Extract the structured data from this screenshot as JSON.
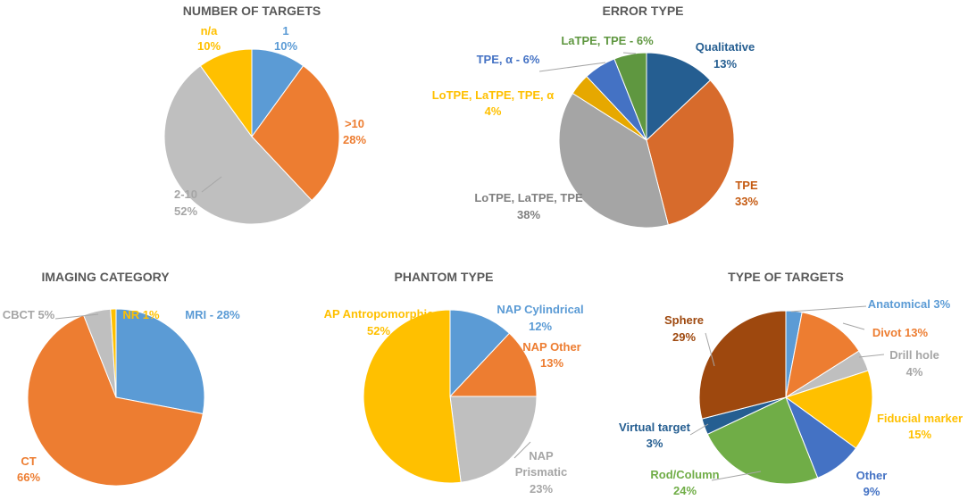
{
  "chart_data": [
    {
      "type": "pie",
      "title": "NUMBER OF TARGETS",
      "slices": [
        {
          "label": "1",
          "value": 10,
          "pct": "10%",
          "color": "#5b9bd5"
        },
        {
          "label": ">10",
          "value": 28,
          "pct": "28%",
          "color": "#ed7d31"
        },
        {
          "label": "2-10",
          "value": 52,
          "pct": "52%",
          "color": "#bfbfbf"
        },
        {
          "label": "n/a",
          "value": 10,
          "pct": "10%",
          "color": "#ffc000"
        }
      ]
    },
    {
      "type": "pie",
      "title": "ERROR TYPE",
      "slices": [
        {
          "label": "Qualitative",
          "value": 13,
          "pct": "13%",
          "color": "#255e91"
        },
        {
          "label": "TPE",
          "value": 33,
          "pct": "33%",
          "color": "#d76b2c"
        },
        {
          "label": "LoTPE, LaTPE, TPE",
          "value": 38,
          "pct": "38%",
          "color": "#a5a5a5"
        },
        {
          "label": "LoTPE, LaTPE, TPE, α",
          "value": 4,
          "pct": "4%",
          "color": "#e6a800"
        },
        {
          "label": "TPE, α - 6%",
          "value": 6,
          "pct": "",
          "color": "#4472c4"
        },
        {
          "label": "LaTPE, TPE - 6%",
          "value": 6,
          "pct": "",
          "color": "#5f9740"
        }
      ]
    },
    {
      "type": "pie",
      "title": "IMAGING CATEGORY",
      "slices": [
        {
          "label": "MRI - 28%",
          "value": 28,
          "pct": "",
          "color": "#5b9bd5"
        },
        {
          "label": "CT",
          "value": 66,
          "pct": "66%",
          "color": "#ed7d31"
        },
        {
          "label": "CBCT 5%",
          "value": 5,
          "pct": "",
          "color": "#bfbfbf"
        },
        {
          "label": "NR 1%",
          "value": 1,
          "pct": "",
          "color": "#ffc000"
        }
      ]
    },
    {
      "type": "pie",
      "title": "PHANTOM TYPE",
      "slices": [
        {
          "label": "NAP Cylindrical",
          "value": 12,
          "pct": "12%",
          "color": "#5b9bd5"
        },
        {
          "label": "NAP Other",
          "value": 13,
          "pct": "13%",
          "color": "#ed7d31"
        },
        {
          "label": "NAP Prismatic",
          "value": 23,
          "pct": "23%",
          "color": "#bfbfbf"
        },
        {
          "label": "AP Antropomorphic",
          "value": 52,
          "pct": "52%",
          "color": "#ffc000"
        }
      ]
    },
    {
      "type": "pie",
      "title": "TYPE OF TARGETS",
      "slices": [
        {
          "label": "Anatomical  3%",
          "value": 3,
          "pct": "",
          "color": "#5b9bd5"
        },
        {
          "label": "Divot  13%",
          "value": 13,
          "pct": "",
          "color": "#ed7d31"
        },
        {
          "label": "Drill hole",
          "value": 4,
          "pct": "4%",
          "color": "#bfbfbf"
        },
        {
          "label": "Fiducial marker",
          "value": 15,
          "pct": "15%",
          "color": "#ffc000"
        },
        {
          "label": "Other",
          "value": 9,
          "pct": "9%",
          "color": "#4472c4"
        },
        {
          "label": "Rod/Column",
          "value": 24,
          "pct": "24%",
          "color": "#70ad47"
        },
        {
          "label": "Virtual target",
          "value": 3,
          "pct": "3%",
          "color": "#255e91"
        },
        {
          "label": "Sphere",
          "value": 29,
          "pct": "29%",
          "color": "#9e480e"
        }
      ]
    }
  ]
}
